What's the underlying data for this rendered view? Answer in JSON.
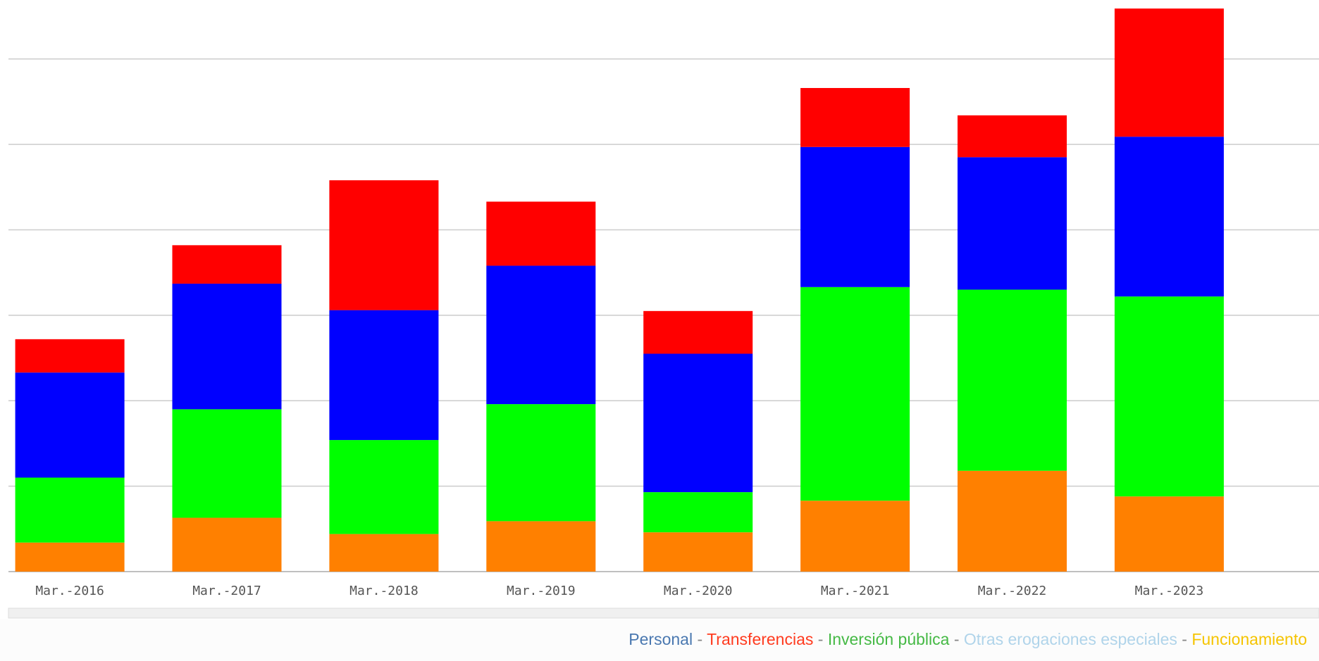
{
  "chart_data": {
    "type": "bar",
    "stacked": true,
    "categories": [
      "Mar.-2016",
      "Mar.-2017",
      "Mar.-2018",
      "Mar.-2019",
      "Mar.-2020",
      "Mar.-2021",
      "Mar.-2022",
      "Mar.-2023"
    ],
    "series": [
      {
        "name": "Personal",
        "color": "#0000ff",
        "legend_color": "#4a78b0",
        "values": [
          1.23,
          1.47,
          1.52,
          1.62,
          1.62,
          1.64,
          1.55,
          1.87
        ]
      },
      {
        "name": "Transferencias",
        "color": "#ff0000",
        "legend_color": "#ff3b1f",
        "values": [
          0.39,
          0.45,
          1.52,
          0.75,
          0.5,
          0.69,
          0.49,
          1.5
        ]
      },
      {
        "name": "Inversión pública",
        "color": "#00ff00",
        "legend_color": "#45b945",
        "values": [
          0.76,
          1.27,
          1.1,
          1.37,
          0.47,
          2.5,
          2.12,
          2.34
        ]
      },
      {
        "name": "Otras erogaciones especiales",
        "color": "#b0d4ea",
        "legend_color": "#b0d4ea",
        "values": [
          0,
          0,
          0,
          0,
          0,
          0,
          0,
          0
        ]
      },
      {
        "name": "Funcionamiento",
        "color": "#ff8000",
        "legend_color": "#f5c400",
        "values": [
          0.34,
          0.63,
          0.44,
          0.59,
          0.46,
          0.83,
          1.18,
          0.88
        ]
      }
    ],
    "legend_separator": "-",
    "ylim": [
      0,
      6.69
    ],
    "yticks": [
      0,
      1,
      2,
      3,
      4,
      5,
      6
    ],
    "grid": true
  }
}
